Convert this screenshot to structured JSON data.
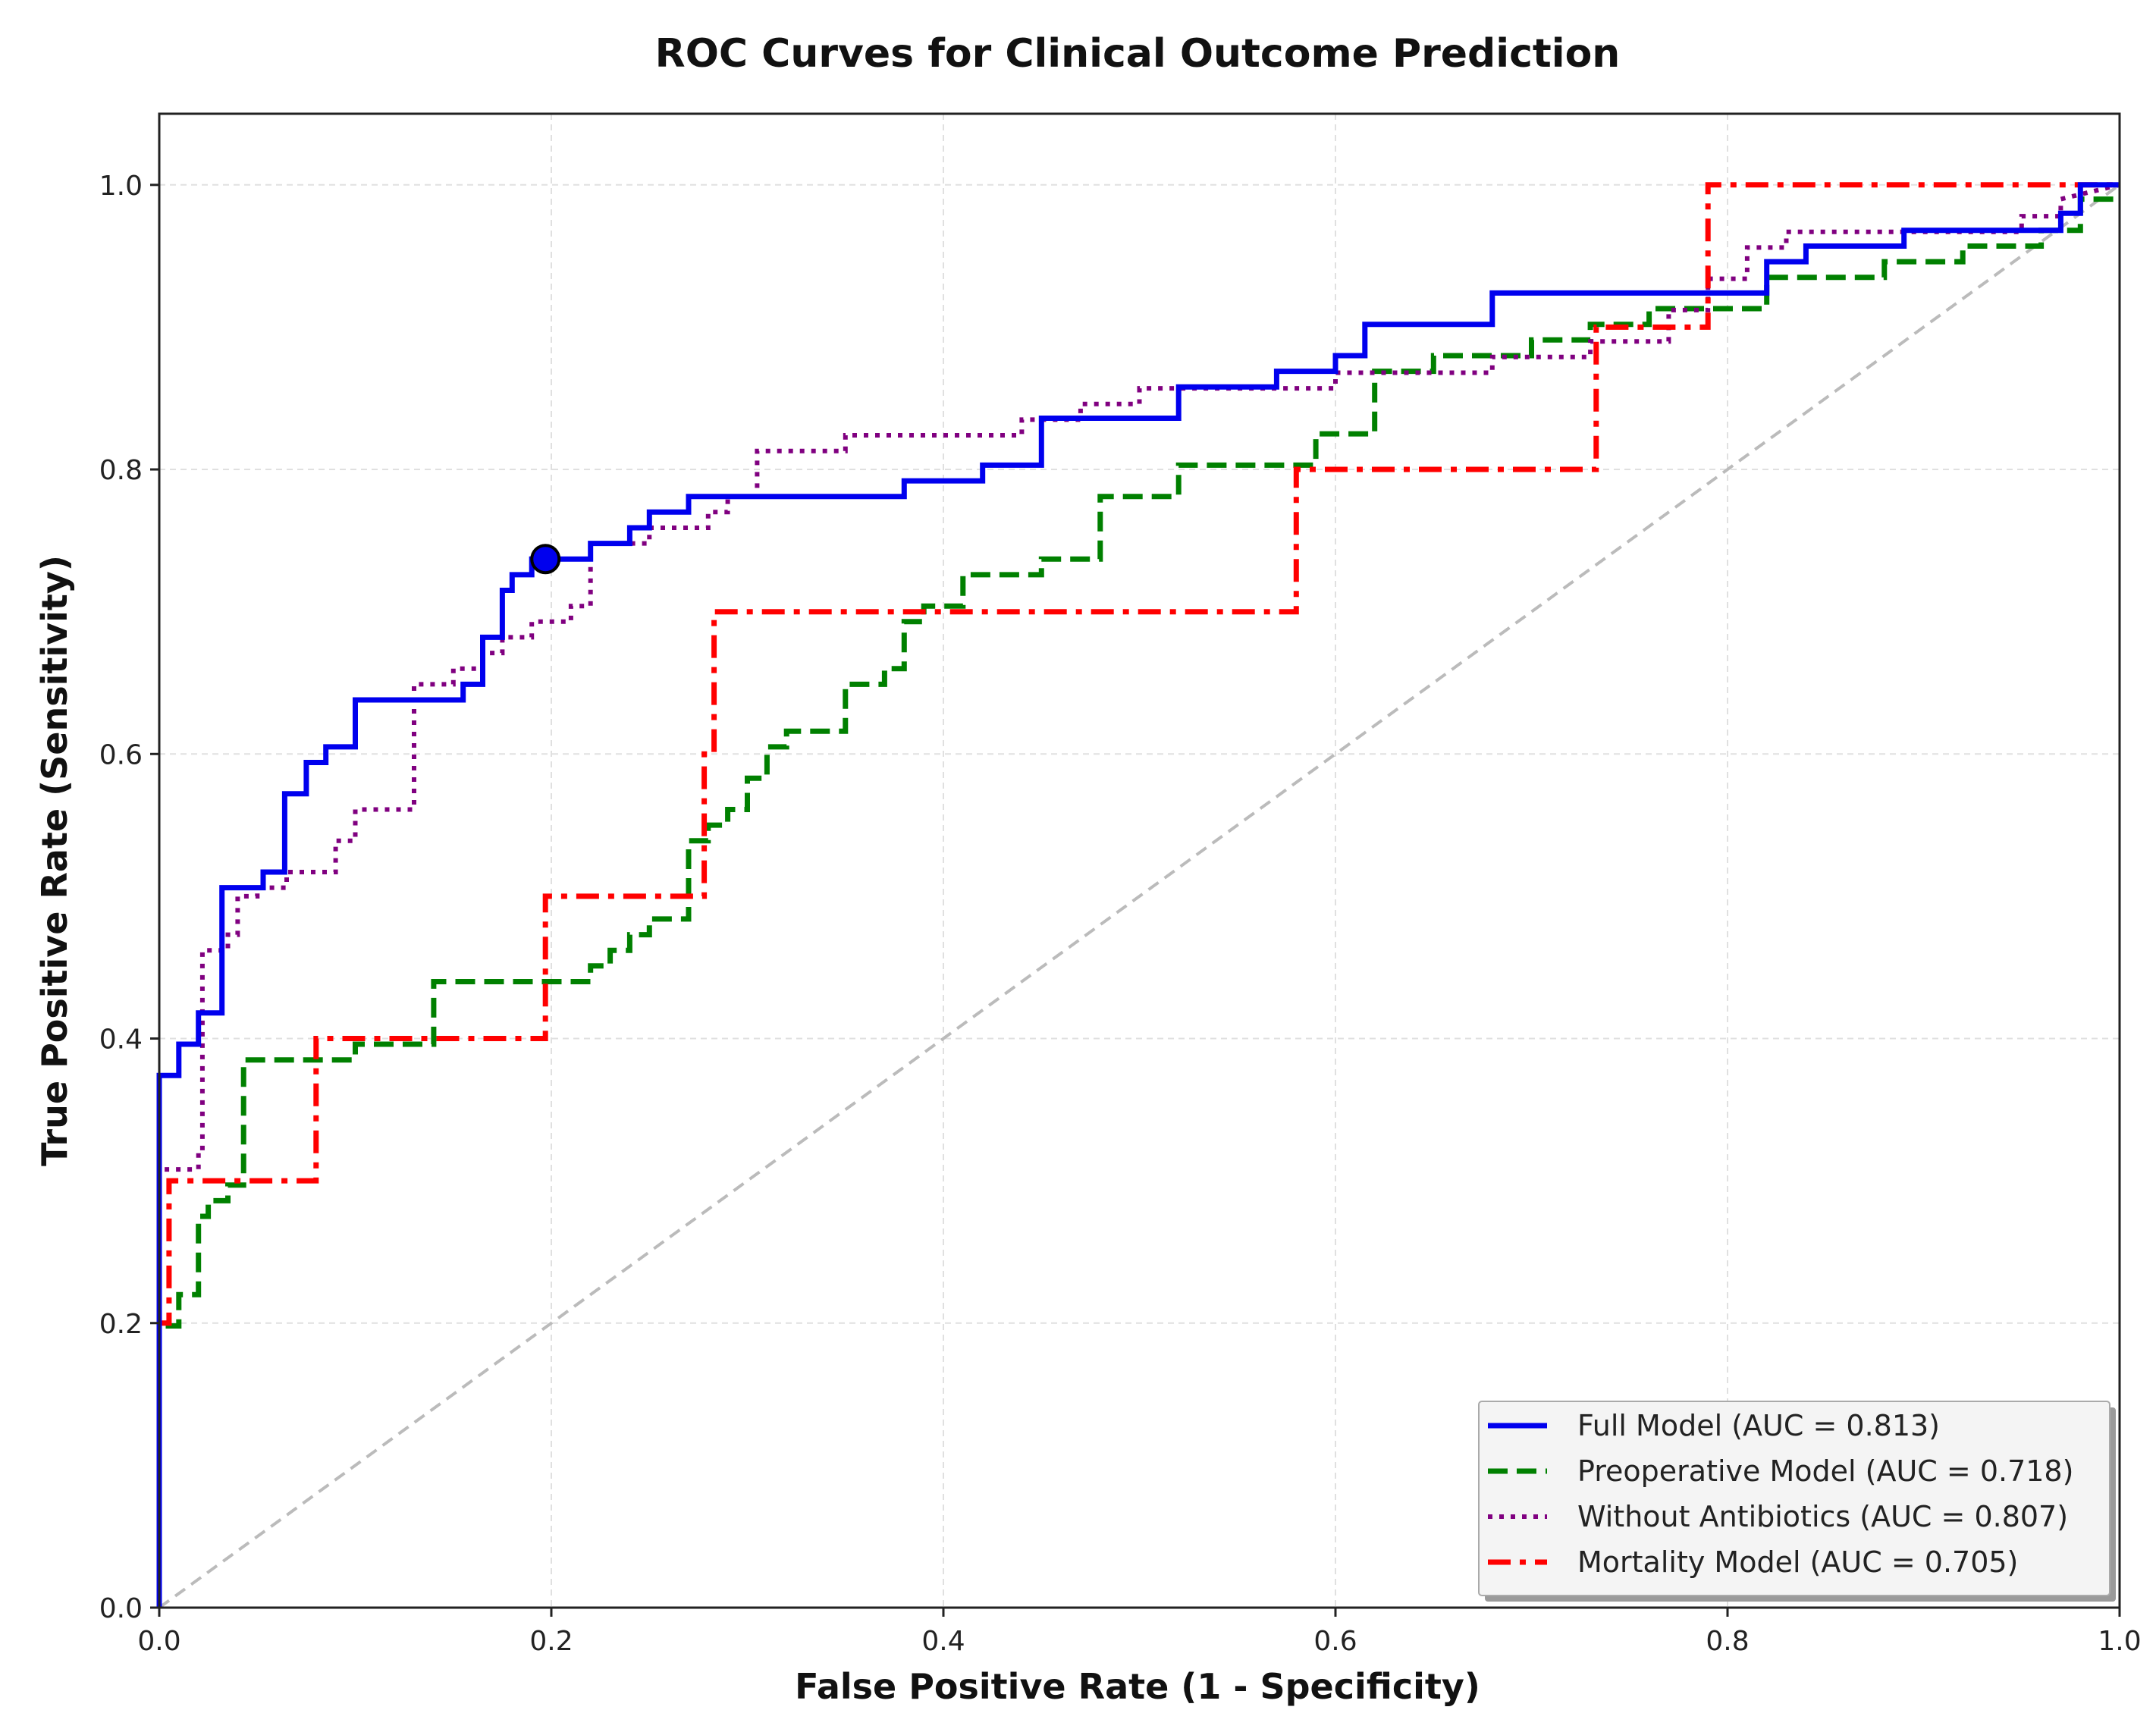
{
  "chart_data": {
    "type": "line",
    "title": "ROC Curves for Clinical Outcome Prediction",
    "xlabel": "False Positive Rate (1 - Specificity)",
    "ylabel": "True Positive Rate (Sensitivity)",
    "xlim": [
      0,
      1
    ],
    "ylim": [
      0,
      1.05
    ],
    "xticks": [
      0.0,
      0.2,
      0.4,
      0.6,
      0.8,
      1.0
    ],
    "yticks": [
      0.0,
      0.2,
      0.4,
      0.6,
      0.8,
      1.0
    ],
    "xtick_labels": [
      "0.0",
      "0.2",
      "0.4",
      "0.6",
      "0.8",
      "1.0"
    ],
    "ytick_labels": [
      "0.0",
      "0.2",
      "0.4",
      "0.6",
      "0.8",
      "1.0"
    ],
    "grid": true,
    "legend_position": "lower-right",
    "diagonal": {
      "x": [
        0,
        1
      ],
      "y": [
        0,
        1
      ],
      "color": "#bbbbbb",
      "style": "dashed"
    },
    "marker": {
      "x": 0.197,
      "y": 0.737,
      "color": "#0000ee"
    },
    "series": [
      {
        "name": "Full Model (AUC = 0.813)",
        "color": "#0000ee",
        "style": "solid",
        "x": [
          0,
          0,
          0.01,
          0.01,
          0.02,
          0.02,
          0.032,
          0.032,
          0.053,
          0.053,
          0.064,
          0.064,
          0.075,
          0.075,
          0.085,
          0.085,
          0.1,
          0.1,
          0.155,
          0.155,
          0.165,
          0.165,
          0.175,
          0.175,
          0.18,
          0.18,
          0.19,
          0.19,
          0.2,
          0.22,
          0.22,
          0.24,
          0.24,
          0.25,
          0.25,
          0.27,
          0.27,
          0.38,
          0.38,
          0.42,
          0.42,
          0.45,
          0.45,
          0.52,
          0.52,
          0.57,
          0.57,
          0.6,
          0.6,
          0.615,
          0.615,
          0.68,
          0.68,
          0.8,
          0.8,
          0.82,
          0.82,
          0.84,
          0.84,
          0.89,
          0.89,
          0.97,
          0.97,
          0.98,
          0.98,
          1.0
        ],
        "y": [
          0,
          0.374,
          0.374,
          0.396,
          0.396,
          0.418,
          0.418,
          0.506,
          0.506,
          0.517,
          0.517,
          0.572,
          0.572,
          0.594,
          0.594,
          0.605,
          0.605,
          0.638,
          0.638,
          0.649,
          0.649,
          0.682,
          0.682,
          0.715,
          0.715,
          0.726,
          0.726,
          0.737,
          0.737,
          0.737,
          0.748,
          0.748,
          0.759,
          0.759,
          0.77,
          0.77,
          0.781,
          0.781,
          0.792,
          0.792,
          0.803,
          0.803,
          0.836,
          0.836,
          0.858,
          0.858,
          0.869,
          0.869,
          0.88,
          0.88,
          0.902,
          0.902,
          0.924,
          0.924,
          0.924,
          0.924,
          0.946,
          0.946,
          0.957,
          0.957,
          0.968,
          0.968,
          0.98,
          0.98,
          1.0,
          1.0
        ]
      },
      {
        "name": "Preoperative Model (AUC = 0.718)",
        "color": "#008000",
        "style": "dashed",
        "x": [
          0,
          0,
          0.01,
          0.01,
          0.02,
          0.02,
          0.025,
          0.025,
          0.035,
          0.035,
          0.043,
          0.043,
          0.08,
          0.08,
          0.1,
          0.1,
          0.14,
          0.14,
          0.22,
          0.22,
          0.23,
          0.23,
          0.24,
          0.24,
          0.25,
          0.25,
          0.27,
          0.27,
          0.28,
          0.28,
          0.29,
          0.29,
          0.3,
          0.3,
          0.31,
          0.31,
          0.32,
          0.32,
          0.35,
          0.35,
          0.37,
          0.37,
          0.38,
          0.38,
          0.39,
          0.39,
          0.41,
          0.41,
          0.45,
          0.45,
          0.48,
          0.48,
          0.52,
          0.52,
          0.59,
          0.59,
          0.62,
          0.62,
          0.65,
          0.65,
          0.7,
          0.7,
          0.73,
          0.73,
          0.76,
          0.76,
          0.82,
          0.82,
          0.88,
          0.88,
          0.92,
          0.92,
          0.96,
          0.96,
          0.98,
          0.98,
          1.0
        ],
        "y": [
          0,
          0.198,
          0.198,
          0.22,
          0.22,
          0.275,
          0.275,
          0.286,
          0.286,
          0.297,
          0.297,
          0.385,
          0.385,
          0.385,
          0.385,
          0.396,
          0.396,
          0.44,
          0.44,
          0.451,
          0.451,
          0.462,
          0.462,
          0.473,
          0.473,
          0.484,
          0.484,
          0.539,
          0.539,
          0.55,
          0.55,
          0.561,
          0.561,
          0.583,
          0.583,
          0.605,
          0.605,
          0.616,
          0.616,
          0.649,
          0.649,
          0.66,
          0.66,
          0.693,
          0.693,
          0.704,
          0.704,
          0.726,
          0.726,
          0.737,
          0.737,
          0.781,
          0.781,
          0.803,
          0.803,
          0.825,
          0.825,
          0.869,
          0.869,
          0.88,
          0.88,
          0.891,
          0.891,
          0.902,
          0.902,
          0.913,
          0.913,
          0.935,
          0.935,
          0.946,
          0.946,
          0.957,
          0.957,
          0.968,
          0.968,
          0.99,
          0.99
        ]
      },
      {
        "name": "Without Antibiotics (AUC = 0.807)",
        "color": "#800080",
        "style": "dotted",
        "x": [
          0,
          0,
          0.02,
          0.02,
          0.022,
          0.022,
          0.035,
          0.035,
          0.04,
          0.04,
          0.05,
          0.05,
          0.065,
          0.065,
          0.09,
          0.09,
          0.1,
          0.1,
          0.13,
          0.13,
          0.15,
          0.15,
          0.165,
          0.165,
          0.175,
          0.175,
          0.19,
          0.19,
          0.21,
          0.21,
          0.22,
          0.22,
          0.25,
          0.25,
          0.28,
          0.28,
          0.29,
          0.29,
          0.305,
          0.305,
          0.35,
          0.35,
          0.44,
          0.44,
          0.47,
          0.47,
          0.5,
          0.5,
          0.6,
          0.6,
          0.63,
          0.63,
          0.68,
          0.68,
          0.73,
          0.73,
          0.77,
          0.77,
          0.79,
          0.79,
          0.81,
          0.81,
          0.83,
          0.83,
          0.95,
          0.95,
          0.97,
          0.97,
          1.0
        ],
        "y": [
          0,
          0.308,
          0.308,
          0.32,
          0.32,
          0.462,
          0.462,
          0.473,
          0.473,
          0.5,
          0.5,
          0.506,
          0.506,
          0.517,
          0.517,
          0.539,
          0.539,
          0.561,
          0.561,
          0.649,
          0.649,
          0.66,
          0.66,
          0.671,
          0.671,
          0.682,
          0.682,
          0.693,
          0.693,
          0.704,
          0.704,
          0.748,
          0.748,
          0.759,
          0.759,
          0.77,
          0.77,
          0.781,
          0.781,
          0.813,
          0.813,
          0.824,
          0.824,
          0.835,
          0.835,
          0.846,
          0.846,
          0.857,
          0.857,
          0.868,
          0.868,
          0.868,
          0.868,
          0.879,
          0.879,
          0.89,
          0.89,
          0.912,
          0.912,
          0.934,
          0.934,
          0.956,
          0.956,
          0.967,
          0.967,
          0.978,
          0.978,
          0.99,
          1.0
        ]
      },
      {
        "name": "Mortality Model (AUC = 0.705)",
        "color": "#ff0000",
        "style": "dashdot",
        "x": [
          0,
          0,
          0.005,
          0.005,
          0.08,
          0.08,
          0.197,
          0.197,
          0.278,
          0.278,
          0.283,
          0.283,
          0.58,
          0.58,
          0.733,
          0.733,
          0.79,
          0.79,
          1.0
        ],
        "y": [
          0,
          0.2,
          0.2,
          0.3,
          0.3,
          0.4,
          0.4,
          0.5,
          0.5,
          0.6,
          0.6,
          0.7,
          0.7,
          0.8,
          0.8,
          0.9,
          0.9,
          1.0,
          1.0
        ]
      }
    ]
  }
}
